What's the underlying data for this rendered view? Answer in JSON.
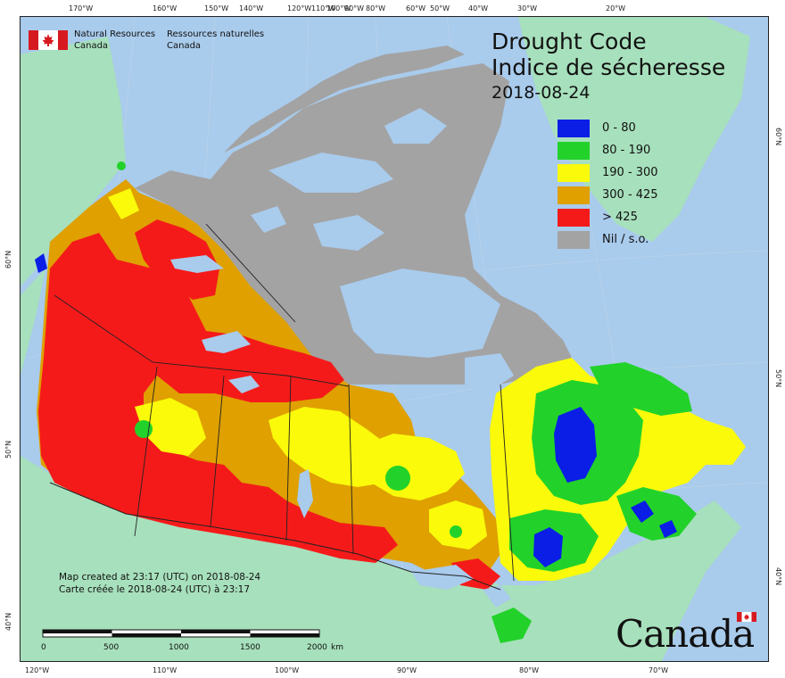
{
  "agency": {
    "en_line1": "Natural Resources",
    "en_line2": "Canada",
    "fr_line1": "Ressources naturelles",
    "fr_line2": "Canada"
  },
  "title": {
    "en": "Drought Code",
    "fr": "Indice de sécheresse",
    "date": "2018-08-24"
  },
  "legend": [
    {
      "label": "0 - 80",
      "color": "#0a1ee6"
    },
    {
      "label": "80 - 190",
      "color": "#22d22a"
    },
    {
      "label": "190 - 300",
      "color": "#fafa0a"
    },
    {
      "label": "300 - 425",
      "color": "#dfa000"
    },
    {
      "label": "> 425",
      "color": "#f51a1a"
    },
    {
      "label": "Nil / s.o.",
      "color": "#a3a3a3"
    }
  ],
  "created": {
    "en": "Map created at 23:17 (UTC) on 2018-08-24",
    "fr": "Carte créée le 2018-08-24 (UTC) à 23:17"
  },
  "scalebar": {
    "ticks": [
      "0",
      "500",
      "1000",
      "1500",
      "2000"
    ],
    "unit": "km"
  },
  "top_longitudes": [
    "170°W",
    "160°W",
    "150°W",
    "140°W",
    "120°W",
    "110°W",
    "100°W",
    "90°W",
    "80°W",
    "60°W",
    "50°W",
    "40°W",
    "30°W",
    "20°W"
  ],
  "bottom_longitudes": [
    "120°W",
    "110°W",
    "100°W",
    "90°W",
    "80°W",
    "70°W"
  ],
  "left_latitudes": [
    "60°N",
    "50°N",
    "40°N"
  ],
  "right_latitudes": [
    "60°N",
    "50°N",
    "40°N"
  ],
  "wordmark": "Canada",
  "colors": {
    "ocean": "#a9cbec",
    "land_outside": "#a7e0bc",
    "greenland": "#a7e0bc",
    "border": "#222222"
  }
}
